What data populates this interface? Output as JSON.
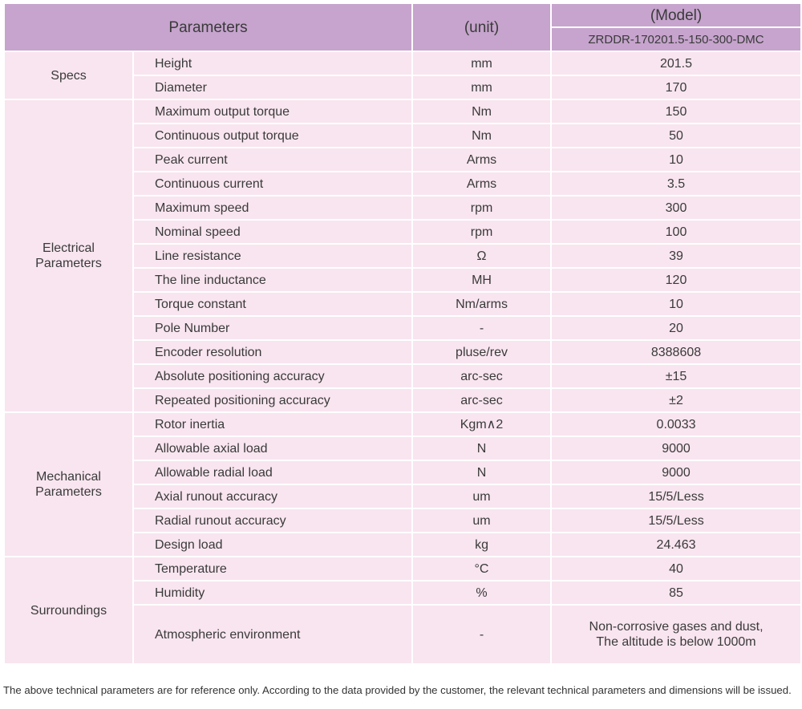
{
  "header": {
    "parameters": "Parameters",
    "unit": "(unit)",
    "model": "(Model)",
    "model_name": "ZRDDR-170201.5-150-300-DMC"
  },
  "groups": [
    {
      "name": "Specs",
      "rows": [
        [
          "Height",
          "mm",
          "201.5"
        ],
        [
          "Diameter",
          "mm",
          "170"
        ]
      ]
    },
    {
      "name": "Electrical\nParameters",
      "rows": [
        [
          "Maximum output torque",
          "Nm",
          "150"
        ],
        [
          "Continuous output torque",
          "Nm",
          "50"
        ],
        [
          "Peak current",
          "Arms",
          "10"
        ],
        [
          "Continuous current",
          "Arms",
          "3.5"
        ],
        [
          "Maximum speed",
          "rpm",
          "300"
        ],
        [
          "Nominal speed",
          "rpm",
          "100"
        ],
        [
          "Line resistance",
          "Ω",
          "39"
        ],
        [
          "The line inductance",
          "MH",
          "120"
        ],
        [
          "Torque constant",
          "Nm/arms",
          "10"
        ],
        [
          "Pole Number",
          "-",
          "20"
        ],
        [
          "Encoder resolution",
          "pluse/rev",
          "8388608"
        ],
        [
          "Absolute positioning accuracy",
          "arc-sec",
          "±15"
        ],
        [
          "Repeated positioning accuracy",
          "arc-sec",
          "±2"
        ]
      ]
    },
    {
      "name": "Mechanical\nParameters",
      "rows": [
        [
          "Rotor inertia",
          "Kgm∧2",
          "0.0033"
        ],
        [
          "Allowable axial load",
          "N",
          "9000"
        ],
        [
          "Allowable radial load",
          "N",
          "9000"
        ],
        [
          "Axial runout accuracy",
          "um",
          "15/5/Less"
        ],
        [
          "Radial runout accuracy",
          "um",
          "15/5/Less"
        ],
        [
          "Design load",
          "kg",
          "24.463"
        ]
      ]
    },
    {
      "name": "Surroundings",
      "rows": [
        [
          "Temperature",
          "°C",
          "40"
        ],
        [
          "Humidity",
          "%",
          "85"
        ],
        [
          "Atmospheric environment",
          "-",
          "Non-corrosive gases and dust,\nThe altitude is below 1000m"
        ]
      ]
    }
  ],
  "footnote": "The above technical parameters are for reference only. According to the data provided by the customer, the relevant technical parameters and dimensions will be issued."
}
